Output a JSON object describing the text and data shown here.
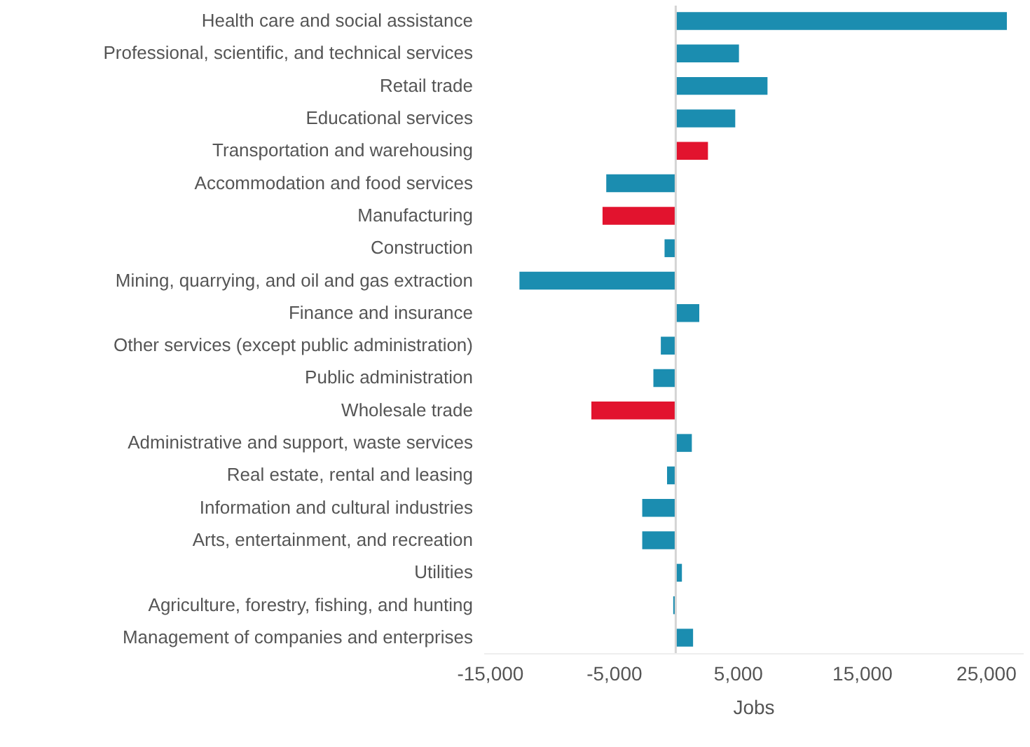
{
  "chart_data": {
    "type": "bar",
    "orientation": "horizontal",
    "xlabel": "Jobs",
    "categories": [
      "Health care and social assistance",
      "Professional, scientific, and technical services",
      "Retail trade",
      "Educational services",
      "Transportation and warehousing",
      "Accommodation and food services",
      "Manufacturing",
      "Construction",
      "Mining, quarrying, and oil and gas extraction",
      "Finance and insurance",
      "Other services (except public administration)",
      "Public administration",
      "Wholesale trade",
      "Administrative and support, waste services",
      "Real estate, rental and leasing",
      "Information and cultural industries",
      "Arts, entertainment, and recreation",
      "Utilities",
      "Agriculture, forestry, fishing, and hunting",
      "Management of companies and enterprises"
    ],
    "values": [
      26700,
      5100,
      7400,
      4800,
      2600,
      -5600,
      -5900,
      -900,
      -12600,
      1900,
      -1200,
      -1800,
      -6800,
      1300,
      -700,
      -2700,
      -2700,
      500,
      -200,
      1400
    ],
    "colors": [
      "#1b8db0",
      "#1b8db0",
      "#1b8db0",
      "#1b8db0",
      "#e2132e",
      "#1b8db0",
      "#e2132e",
      "#1b8db0",
      "#1b8db0",
      "#1b8db0",
      "#1b8db0",
      "#1b8db0",
      "#e2132e",
      "#1b8db0",
      "#1b8db0",
      "#1b8db0",
      "#1b8db0",
      "#1b8db0",
      "#1b8db0",
      "#1b8db0"
    ],
    "xlim": [
      -15500,
      28000
    ],
    "xticks": [
      {
        "value": -15000,
        "label": "-15,000"
      },
      {
        "value": -5000,
        "label": "-5,000"
      },
      {
        "value": 5000,
        "label": "5,000"
      },
      {
        "value": 15000,
        "label": "15,000"
      },
      {
        "value": 25000,
        "label": "25,000"
      }
    ],
    "ref_lines": [
      {
        "axis": "x",
        "value": 0,
        "color": "#d4d4d4"
      }
    ],
    "grid": false
  }
}
